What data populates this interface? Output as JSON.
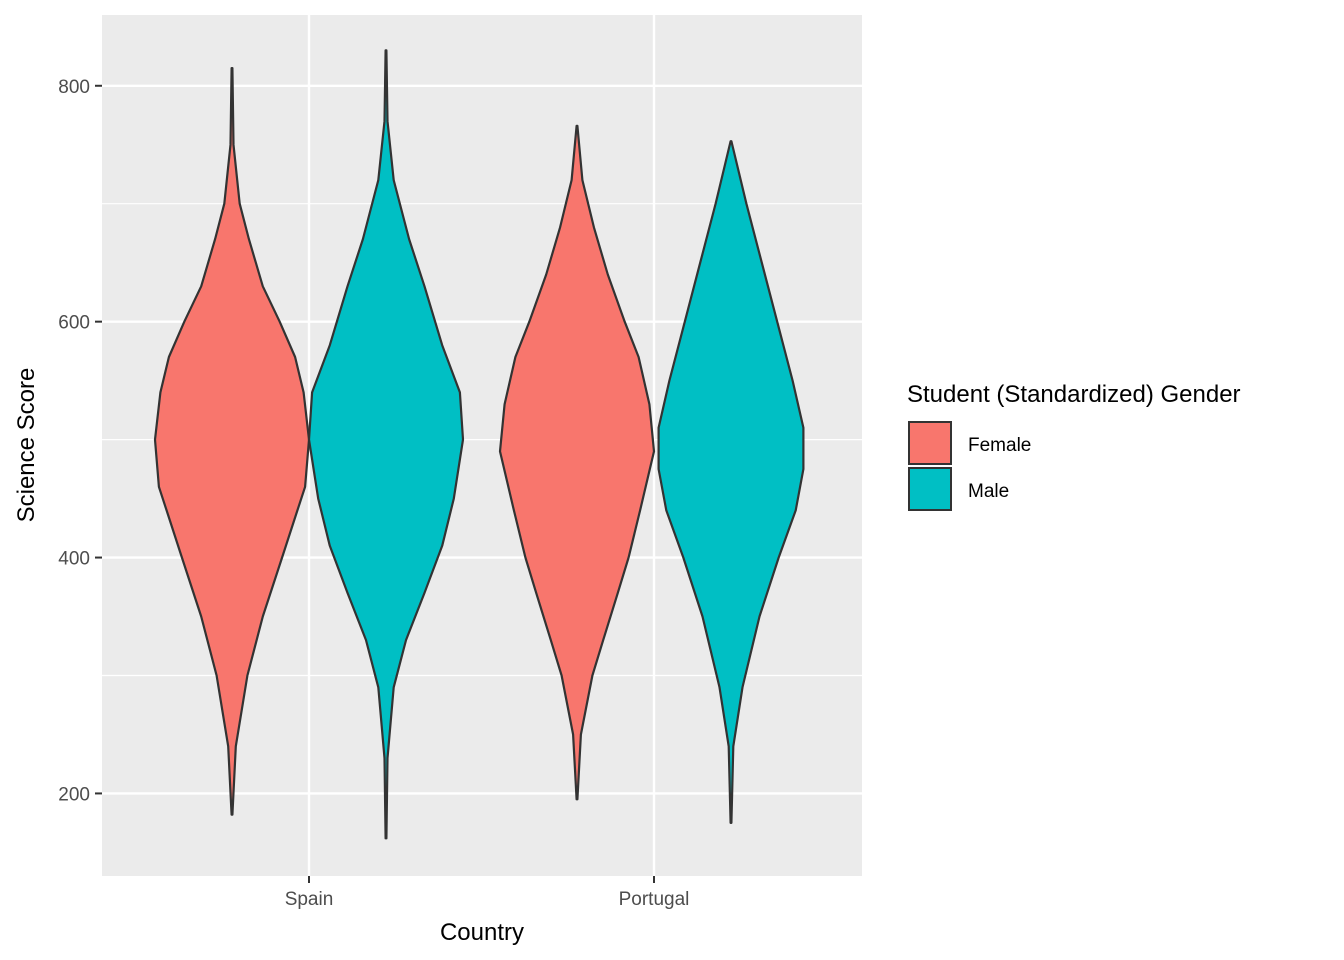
{
  "chart_data": {
    "type": "violin",
    "title": "",
    "xlabel": "Country",
    "ylabel": "Science Score",
    "categories": [
      "Spain",
      "Portugal"
    ],
    "yticks": [
      "200",
      "400",
      "600",
      "800"
    ],
    "ylim": [
      130,
      860
    ],
    "grid": true,
    "legend": {
      "title": "Student (Standardized) Gender",
      "placement": "right",
      "entries": [
        {
          "label": "Female",
          "color": "#F8766D"
        },
        {
          "label": "Male",
          "color": "#00BFC4"
        }
      ]
    },
    "series": [
      {
        "name": "Female",
        "color": "#F8766D",
        "violins": [
          {
            "category": "Spain",
            "min": 182,
            "max": 815,
            "profile": [
              [
                182,
                0.005
              ],
              [
                240,
                0.05
              ],
              [
                300,
                0.2
              ],
              [
                350,
                0.4
              ],
              [
                400,
                0.65
              ],
              [
                440,
                0.85
              ],
              [
                460,
                0.95
              ],
              [
                500,
                1.0
              ],
              [
                540,
                0.93
              ],
              [
                570,
                0.82
              ],
              [
                600,
                0.62
              ],
              [
                630,
                0.4
              ],
              [
                670,
                0.22
              ],
              [
                700,
                0.1
              ],
              [
                750,
                0.02
              ],
              [
                815,
                0.005
              ]
            ]
          },
          {
            "category": "Portugal",
            "min": 195,
            "max": 766,
            "profile": [
              [
                195,
                0.005
              ],
              [
                250,
                0.05
              ],
              [
                300,
                0.2
              ],
              [
                330,
                0.34
              ],
              [
                370,
                0.53
              ],
              [
                400,
                0.67
              ],
              [
                440,
                0.82
              ],
              [
                490,
                1.0
              ],
              [
                530,
                0.94
              ],
              [
                570,
                0.8
              ],
              [
                600,
                0.62
              ],
              [
                640,
                0.4
              ],
              [
                680,
                0.22
              ],
              [
                720,
                0.07
              ],
              [
                766,
                0.005
              ]
            ]
          }
        ]
      },
      {
        "name": "Male",
        "color": "#00BFC4",
        "violins": [
          {
            "category": "Spain",
            "min": 162,
            "max": 830,
            "profile": [
              [
                162,
                0.005
              ],
              [
                230,
                0.02
              ],
              [
                290,
                0.1
              ],
              [
                330,
                0.26
              ],
              [
                370,
                0.5
              ],
              [
                410,
                0.73
              ],
              [
                450,
                0.88
              ],
              [
                500,
                1.0
              ],
              [
                540,
                0.96
              ],
              [
                580,
                0.73
              ],
              [
                630,
                0.5
              ],
              [
                670,
                0.3
              ],
              [
                720,
                0.1
              ],
              [
                770,
                0.02
              ],
              [
                830,
                0.005
              ]
            ]
          },
          {
            "category": "Portugal",
            "min": 175,
            "max": 753,
            "profile": [
              [
                175,
                0.005
              ],
              [
                240,
                0.03
              ],
              [
                290,
                0.15
              ],
              [
                350,
                0.37
              ],
              [
                400,
                0.62
              ],
              [
                440,
                0.84
              ],
              [
                475,
                0.94
              ],
              [
                510,
                0.94
              ],
              [
                550,
                0.8
              ],
              [
                600,
                0.6
              ],
              [
                650,
                0.4
              ],
              [
                700,
                0.2
              ],
              [
                753,
                0.005
              ]
            ]
          }
        ]
      }
    ]
  }
}
